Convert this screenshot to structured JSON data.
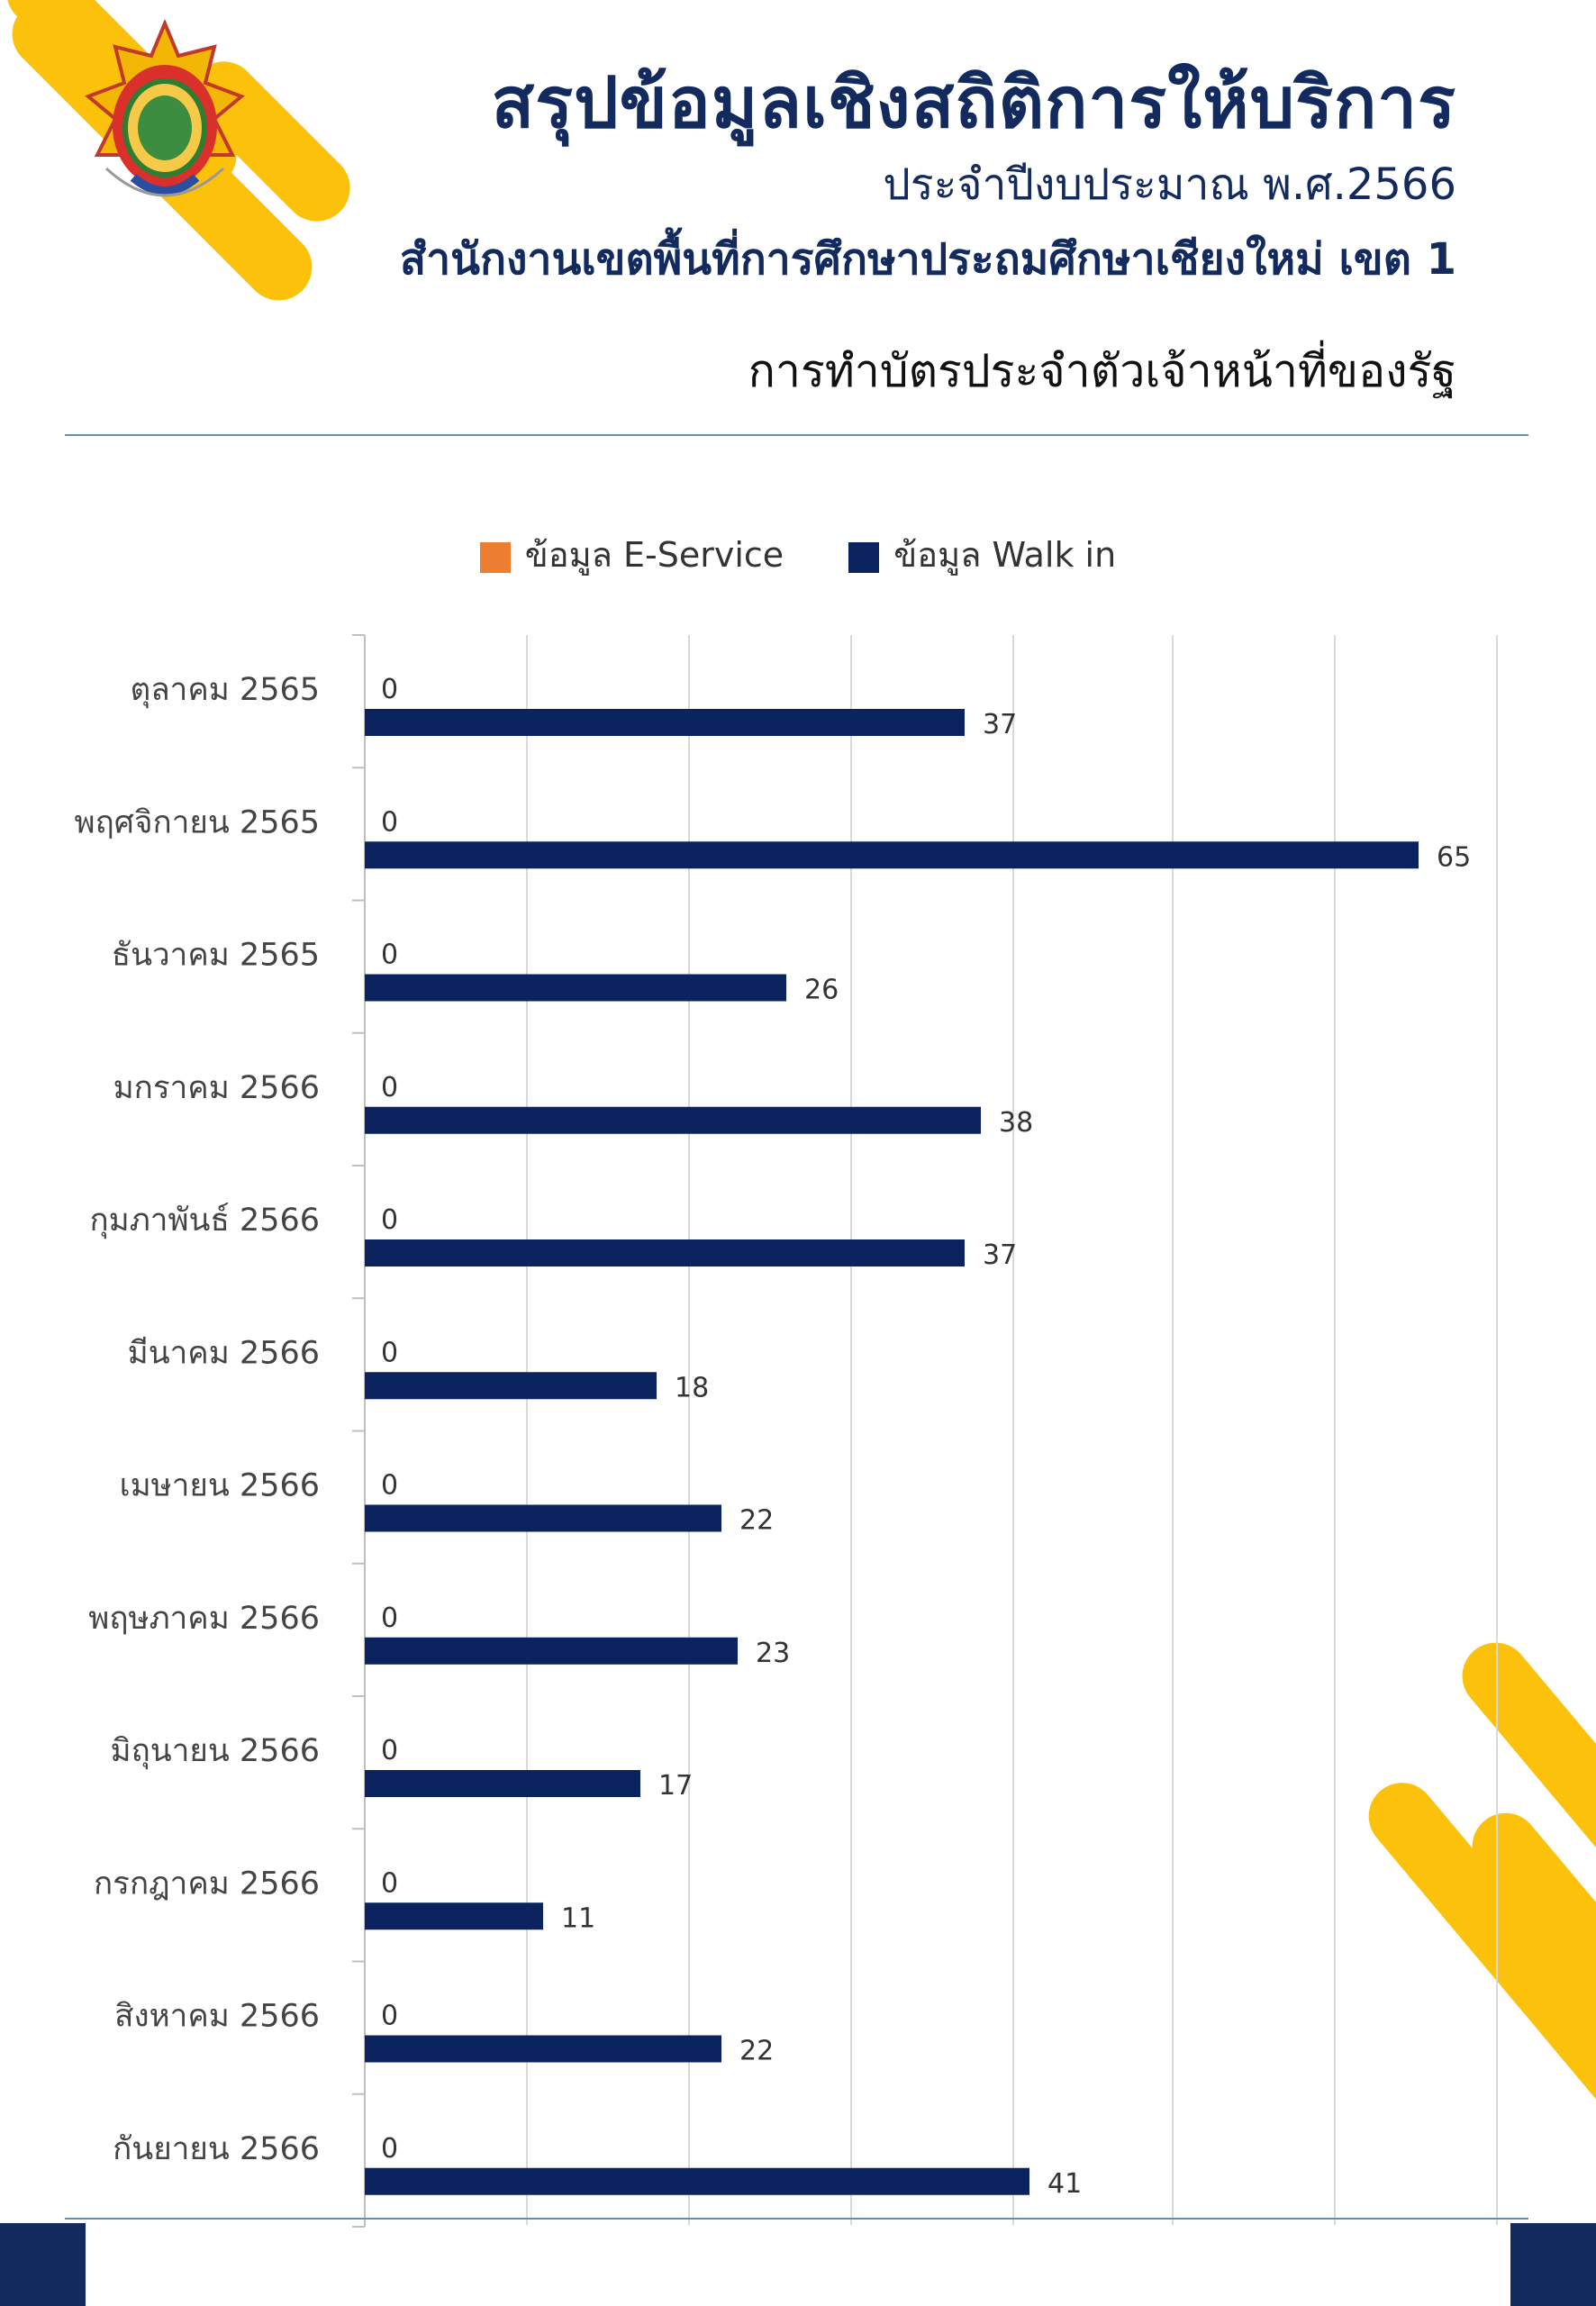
{
  "header": {
    "title": "สรุปข้อมูลเชิงสถิติการให้บริการ",
    "fiscal_year": "ประจำปีงบประมาณ พ.ศ.2566",
    "organization": "สำนักงานเขตพื้นที่การศึกษาประถมศึกษาเชียงใหม่ เขต 1",
    "service": "การทำบัตรประจำตัวเจ้าหน้าที่ของรัฐ"
  },
  "colors": {
    "brand_navy": "#132a5e",
    "accent_yellow": "#fcc10a",
    "e_service": "#ed7d31",
    "walk_in": "#0b2460"
  },
  "chart_data": {
    "type": "bar",
    "orientation": "horizontal",
    "categories": [
      "ตุลาคม 2565",
      "พฤศจิกายน 2565",
      "ธันวาคม 2565",
      "มกราคม 2566",
      "กุมภาพันธ์ 2566",
      "มีนาคม 2566",
      "เมษายน 2566",
      "พฤษภาคม 2566",
      "มิถุนายน 2566",
      "กรกฎาคม 2566",
      "สิงหาคม 2566",
      "กันยายน 2566"
    ],
    "series": [
      {
        "name": "ข้อมูล E-Service",
        "color": "#ed7d31",
        "values": [
          0,
          0,
          0,
          0,
          0,
          0,
          0,
          0,
          0,
          0,
          0,
          0
        ]
      },
      {
        "name": "ข้อมูล Walk in",
        "color": "#0b2460",
        "values": [
          37,
          65,
          26,
          38,
          37,
          18,
          22,
          23,
          17,
          11,
          22,
          41
        ]
      }
    ],
    "xlim": [
      0,
      70
    ],
    "grid": true,
    "legend_position": "top-center",
    "data_labels": true
  }
}
